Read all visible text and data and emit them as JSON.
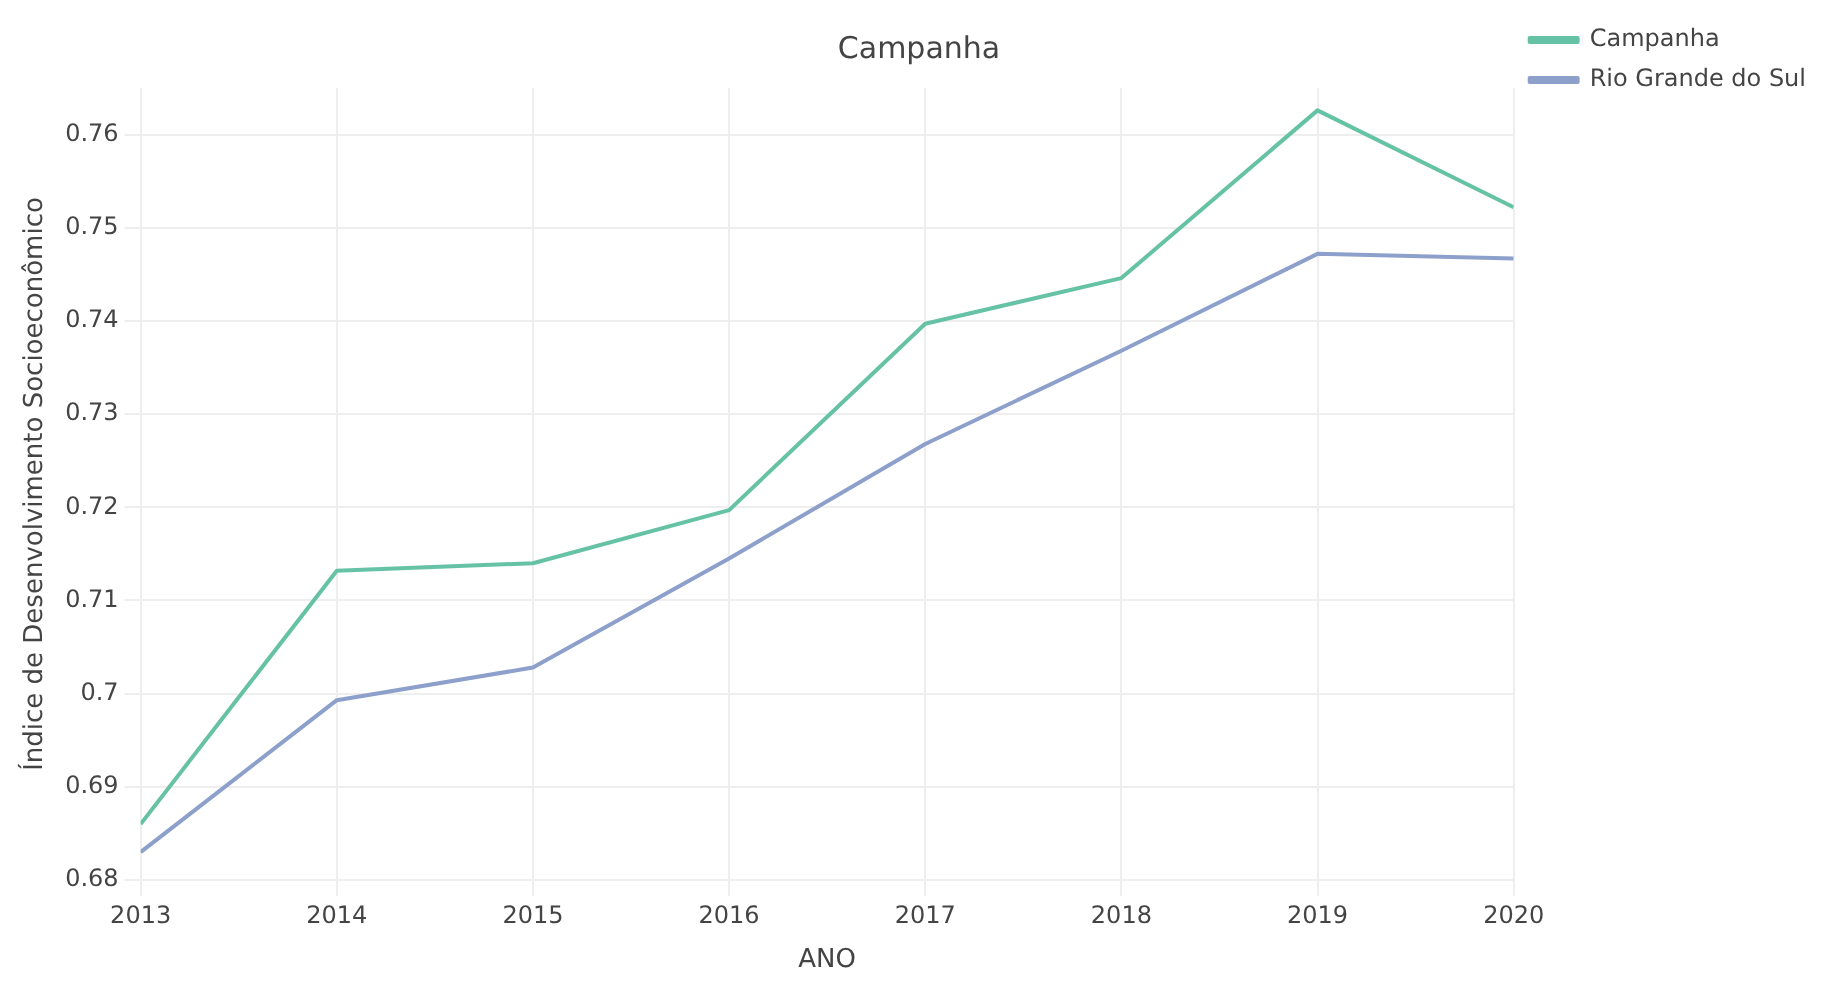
{
  "chart_data": {
    "type": "line",
    "title": "Campanha",
    "xlabel": "ANO",
    "ylabel": "Índice de Desenvolvimento Socioeconômico",
    "x": [
      2013,
      2014,
      2015,
      2016,
      2017,
      2018,
      2019,
      2020
    ],
    "series": [
      {
        "name": "Campanha",
        "color": "#66c2a5",
        "values": [
          0.686,
          0.7132,
          0.714,
          0.7197,
          0.7397,
          0.7446,
          0.7626,
          0.7522
        ]
      },
      {
        "name": "Rio Grande do Sul",
        "color": "#8da0cb",
        "values": [
          0.683,
          0.6993,
          0.7028,
          0.7145,
          0.7268,
          0.7368,
          0.7472,
          0.7467
        ]
      }
    ],
    "xlim": [
      2013,
      2020
    ],
    "xticks": [
      2013,
      2014,
      2015,
      2016,
      2017,
      2018,
      2019,
      2020
    ],
    "ylim": [
      0.68,
      0.765
    ],
    "yticks": [
      0.68,
      0.69,
      0.7,
      0.71,
      0.72,
      0.73,
      0.74,
      0.75,
      0.76
    ],
    "grid": true,
    "legend": "top right",
    "marker": "none",
    "line_style": "solid"
  }
}
